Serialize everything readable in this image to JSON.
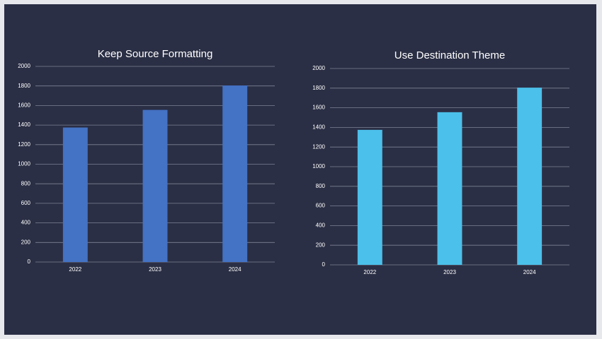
{
  "chart_data": [
    {
      "type": "bar",
      "title": "Keep Source Formatting",
      "categories": [
        "2022",
        "2023",
        "2024"
      ],
      "values": [
        1375,
        1555,
        1805
      ],
      "color": "#4472c4",
      "ylim": [
        0,
        2000
      ],
      "yticks": [
        0,
        200,
        400,
        600,
        800,
        1000,
        1200,
        1400,
        1600,
        1800,
        2000
      ],
      "grid": true
    },
    {
      "type": "bar",
      "title": "Use Destination Theme",
      "categories": [
        "2022",
        "2023",
        "2024"
      ],
      "values": [
        1375,
        1555,
        1805
      ],
      "color": "#4bc0ea",
      "ylim": [
        0,
        2000
      ],
      "yticks": [
        0,
        200,
        400,
        600,
        800,
        1000,
        1200,
        1400,
        1600,
        1800,
        2000
      ],
      "grid": true
    }
  ]
}
